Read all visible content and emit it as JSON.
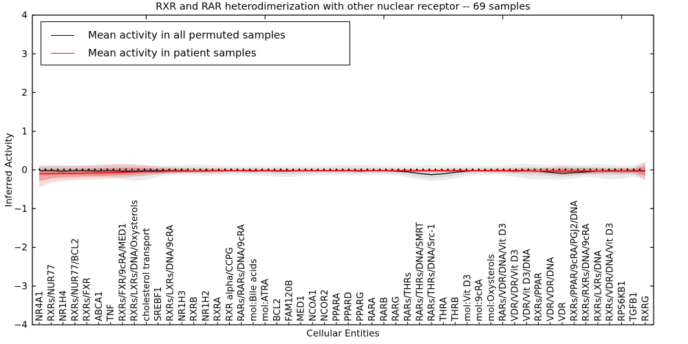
{
  "chart_data": {
    "type": "line",
    "title": "RXR and RAR heterodimerization with other nuclear receptor -- 69 samples",
    "xlabel": "Cellular Entities",
    "ylabel": "Inferred Activity",
    "ylim": [
      -4,
      4
    ],
    "yticks": [
      4,
      3,
      2,
      1,
      0,
      -1,
      -2,
      -3,
      -4
    ],
    "grid": false,
    "legend_position": "upper left",
    "categories": [
      "NR4A1",
      "RXRs/NUR77",
      "NR1H4",
      "RXRs/NUR77/BCL2",
      "RXRs/FXR",
      "ABCA1",
      "TNF",
      "RXRs/FXR/9cRA/MED1",
      "RXRs/LXRs/DNA/Oxysterols",
      "cholesterol transport",
      "SREBF1",
      "RXRs/LXRs/DNA/9cRA",
      "NR1H3",
      "RXRB",
      "NR1H2",
      "RXRA",
      "RXR alpha/CCPG",
      "RARs/RARs/DNA/9cRA",
      "mol:Bile acids",
      "mol:ATRA",
      "BCL2",
      "FAM120B",
      "MED1",
      "NCOA1",
      "NCOR2",
      "PPARA",
      "PPARD",
      "PPARG",
      "RARA",
      "RARB",
      "RARG",
      "RARs/THRs",
      "RARs/THRs/DNA/SMRT",
      "RARs/THRs/DNA/Src-1",
      "THRA",
      "THRB",
      "mol:Vit D3",
      "mol:9cRA",
      "mol:Oxysterols",
      "RARs/VDR/DNA/Vit D3",
      "VDR/VDR/Vit D3",
      "VDR/Vit D3/DNA",
      "RXRs/PPAR",
      "VDR/VDR/DNA",
      "VDR",
      "RXRs/PPAR/9cRA/PGJ2/DNA",
      "RXRs/RXRs/DNA/9cRA",
      "RXRs/LXRs/DNA",
      "RXRs/VDR/DNA/Vit D3",
      "RPS6KB1",
      "TGFB1",
      "RXRG"
    ],
    "series": [
      {
        "name": "Mean activity in all permuted samples",
        "color": "#000000",
        "values": [
          -0.02,
          -0.02,
          -0.03,
          -0.02,
          -0.02,
          -0.03,
          -0.02,
          -0.03,
          -0.03,
          -0.02,
          -0.02,
          -0.02,
          -0.02,
          -0.03,
          -0.02,
          -0.02,
          -0.02,
          -0.02,
          -0.03,
          -0.02,
          -0.03,
          -0.03,
          -0.02,
          -0.02,
          -0.02,
          -0.02,
          -0.02,
          -0.03,
          -0.02,
          -0.02,
          -0.03,
          -0.05,
          -0.09,
          -0.12,
          -0.1,
          -0.06,
          -0.03,
          -0.02,
          -0.02,
          -0.02,
          -0.03,
          -0.02,
          -0.03,
          -0.06,
          -0.09,
          -0.07,
          -0.05,
          -0.03,
          -0.02,
          -0.03,
          -0.02,
          -0.02
        ]
      },
      {
        "name": "Mean activity in patient samples",
        "color": "#ff0000",
        "values": [
          -0.1,
          -0.1,
          -0.09,
          -0.09,
          -0.08,
          -0.08,
          -0.07,
          -0.06,
          -0.05,
          -0.04,
          -0.04,
          -0.03,
          -0.03,
          -0.03,
          -0.03,
          -0.02,
          -0.02,
          -0.02,
          -0.02,
          -0.02,
          -0.02,
          -0.02,
          -0.02,
          -0.02,
          -0.02,
          -0.02,
          -0.02,
          -0.02,
          -0.02,
          -0.02,
          -0.02,
          -0.02,
          -0.02,
          -0.02,
          -0.02,
          -0.02,
          -0.02,
          -0.02,
          -0.02,
          -0.02,
          -0.02,
          -0.02,
          -0.03,
          -0.03,
          -0.03,
          -0.03,
          -0.03,
          -0.03,
          -0.03,
          -0.03,
          -0.03,
          -0.03
        ]
      }
    ],
    "bands": [
      {
        "name": "permuted-samples-std-band",
        "color": "#bdbdbd",
        "upper": [
          0.1,
          0.11,
          0.12,
          0.11,
          0.12,
          0.13,
          0.14,
          0.15,
          0.14,
          0.12,
          0.11,
          0.12,
          0.13,
          0.14,
          0.13,
          0.12,
          0.11,
          0.1,
          0.11,
          0.1,
          0.11,
          0.12,
          0.11,
          0.1,
          0.11,
          0.12,
          0.13,
          0.13,
          0.12,
          0.11,
          0.1,
          0.11,
          0.12,
          0.13,
          0.12,
          0.12,
          0.11,
          0.1,
          0.11,
          0.12,
          0.14,
          0.15,
          0.14,
          0.13,
          0.14,
          0.13,
          0.12,
          0.15,
          0.13,
          0.11,
          0.12,
          0.2
        ],
        "lower": [
          -0.12,
          -0.13,
          -0.14,
          -0.13,
          -0.14,
          -0.16,
          -0.18,
          -0.24,
          -0.28,
          -0.26,
          -0.18,
          -0.14,
          -0.13,
          -0.14,
          -0.15,
          -0.14,
          -0.13,
          -0.12,
          -0.14,
          -0.15,
          -0.17,
          -0.18,
          -0.16,
          -0.14,
          -0.13,
          -0.12,
          -0.13,
          -0.14,
          -0.13,
          -0.12,
          -0.14,
          -0.18,
          -0.24,
          -0.28,
          -0.26,
          -0.22,
          -0.16,
          -0.13,
          -0.12,
          -0.14,
          -0.18,
          -0.22,
          -0.25,
          -0.24,
          -0.25,
          -0.22,
          -0.18,
          -0.2,
          -0.24,
          -0.22,
          -0.18,
          -0.25
        ]
      },
      {
        "name": "patient-samples-std-band",
        "color": "#e05050",
        "upper": [
          0.1,
          0.11,
          0.1,
          0.1,
          0.11,
          0.12,
          0.14,
          0.15,
          0.14,
          0.12,
          0.09,
          0.07,
          0.05,
          0.04,
          0.04,
          0.03,
          0.02,
          0.02,
          0.02,
          0.01,
          0.01,
          0.01,
          0.01,
          0.01,
          0.01,
          0.01,
          0.01,
          0.01,
          0.01,
          0.01,
          0.01,
          0.01,
          0.01,
          0.01,
          0.01,
          0.01,
          0.01,
          0.01,
          0.02,
          0.02,
          0.03,
          0.04,
          0.05,
          0.07,
          0.09,
          0.08,
          0.07,
          0.06,
          0.04,
          0.06,
          0.05,
          0.2
        ],
        "lower": [
          -0.45,
          -0.32,
          -0.28,
          -0.26,
          -0.25,
          -0.24,
          -0.22,
          -0.2,
          -0.17,
          -0.14,
          -0.12,
          -0.1,
          -0.08,
          -0.07,
          -0.07,
          -0.06,
          -0.05,
          -0.05,
          -0.05,
          -0.05,
          -0.05,
          -0.05,
          -0.05,
          -0.05,
          -0.05,
          -0.05,
          -0.05,
          -0.05,
          -0.05,
          -0.05,
          -0.05,
          -0.05,
          -0.06,
          -0.06,
          -0.06,
          -0.06,
          -0.05,
          -0.05,
          -0.06,
          -0.06,
          -0.07,
          -0.08,
          -0.09,
          -0.11,
          -0.13,
          -0.12,
          -0.11,
          -0.1,
          -0.08,
          -0.1,
          -0.09,
          -0.25
        ]
      }
    ],
    "marker_dot_value": 0.015,
    "top_tick_indices": [
      9,
      19,
      29,
      39,
      49
    ]
  }
}
